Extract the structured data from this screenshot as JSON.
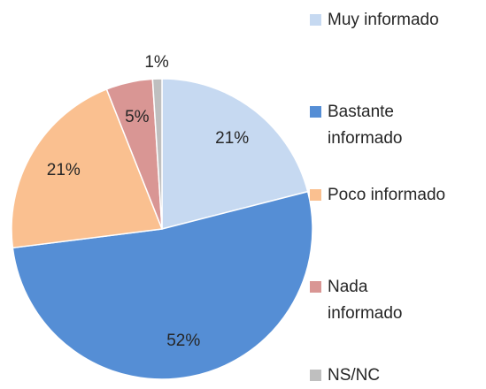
{
  "chart_data": {
    "type": "pie",
    "categories": [
      "Muy informado",
      "Bastante informado",
      "Poco informado",
      "Nada informado",
      "NS/NC"
    ],
    "values": [
      21,
      52,
      21,
      5,
      1
    ],
    "value_labels": [
      "21%",
      "52%",
      "21%",
      "5%",
      "1%"
    ],
    "colors": [
      "#c6d9f1",
      "#558ed5",
      "#fac090",
      "#d99694",
      "#bfbfbf"
    ],
    "legend": "right"
  }
}
